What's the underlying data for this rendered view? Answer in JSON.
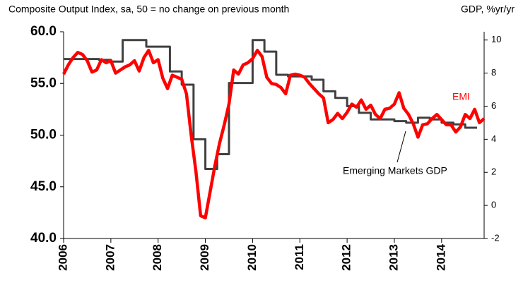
{
  "chart_data": {
    "type": "line",
    "title": "Composite Output Index, sa, 50 = no change on previous month",
    "y2_label": "GDP, %yr/yr",
    "annotations": [
      "EMI",
      "Emerging Markets GDP"
    ],
    "xlim": [
      2006,
      2014.9
    ],
    "xticks": [
      2006,
      2007,
      2008,
      2009,
      2010,
      2011,
      2012,
      2013,
      2014
    ],
    "ylim": [
      40,
      60
    ],
    "yticks": [
      {
        "value": 40,
        "label": "40.0"
      },
      {
        "value": 45,
        "label": "45.0"
      },
      {
        "value": 50,
        "label": "50.0"
      },
      {
        "value": 55,
        "label": "55.0"
      },
      {
        "value": 60,
        "label": "60.0"
      }
    ],
    "y2lim": [
      -2,
      10.5
    ],
    "y2ticks": [
      -2,
      0,
      2,
      4,
      6,
      8,
      10
    ],
    "series": [
      {
        "name": "EMI",
        "color": "#ff0000",
        "axis": "y",
        "step": false,
        "x": [
          2006.0,
          2006.1,
          2006.2,
          2006.3,
          2006.4,
          2006.5,
          2006.6,
          2006.7,
          2006.8,
          2006.9,
          2007.0,
          2007.1,
          2007.2,
          2007.3,
          2007.4,
          2007.5,
          2007.6,
          2007.7,
          2007.8,
          2007.9,
          2008.0,
          2008.1,
          2008.2,
          2008.3,
          2008.4,
          2008.5,
          2008.6,
          2008.7,
          2008.8,
          2008.9,
          2009.0,
          2009.1,
          2009.2,
          2009.3,
          2009.4,
          2009.5,
          2009.6,
          2009.7,
          2009.8,
          2009.9,
          2010.0,
          2010.1,
          2010.2,
          2010.3,
          2010.4,
          2010.5,
          2010.6,
          2010.7,
          2010.8,
          2010.9,
          2011.0,
          2011.1,
          2011.2,
          2011.3,
          2011.4,
          2011.5,
          2011.6,
          2011.7,
          2011.8,
          2011.9,
          2012.0,
          2012.1,
          2012.2,
          2012.3,
          2012.4,
          2012.5,
          2012.6,
          2012.7,
          2012.8,
          2012.9,
          2013.0,
          2013.1,
          2013.2,
          2013.3,
          2013.4,
          2013.5,
          2013.6,
          2013.7,
          2013.8,
          2013.9,
          2014.0,
          2014.1,
          2014.2,
          2014.3,
          2014.4,
          2014.5,
          2014.6,
          2014.7,
          2014.8,
          2014.9
        ],
        "values": [
          55.9,
          56.8,
          57.5,
          58,
          57.8,
          57.2,
          56.1,
          56.3,
          57.3,
          57.0,
          57.2,
          56.0,
          56.3,
          56.6,
          56.8,
          57.2,
          56.2,
          57.5,
          58.2,
          57.0,
          57.3,
          55.5,
          54.5,
          55.8,
          55.6,
          55.4,
          54.0,
          50.0,
          46.5,
          42.2,
          42.0,
          44.5,
          47.0,
          49.2,
          51.0,
          53.0,
          56.3,
          55.9,
          56.8,
          57.0,
          57.4,
          58.2,
          57.6,
          55.6,
          55.0,
          54.9,
          54.6,
          54.0,
          55.8,
          55.9,
          55.8,
          55.6,
          55.0,
          54.5,
          54.0,
          53.6,
          51.2,
          51.5,
          52.1,
          51.6,
          52.2,
          53.0,
          52.7,
          53.4,
          52.5,
          52.9,
          52.0,
          51.6,
          52.5,
          52.6,
          53.0,
          54.1,
          52.6,
          52.0,
          51.1,
          49.8,
          51.0,
          51.1,
          51.6,
          52.0,
          51.5,
          51.0,
          51.0,
          50.3,
          50.8,
          52.0,
          51.6,
          52.5,
          51.2,
          51.6
        ]
      },
      {
        "name": "Emerging Markets GDP",
        "color": "#404040",
        "axis": "y2",
        "step": true,
        "x": [
          2006.0,
          2006.25,
          2006.5,
          2006.75,
          2007.0,
          2007.25,
          2007.5,
          2007.75,
          2008.0,
          2008.25,
          2008.5,
          2008.75,
          2009.0,
          2009.25,
          2009.5,
          2009.75,
          2010.0,
          2010.25,
          2010.5,
          2010.75,
          2011.0,
          2011.25,
          2011.5,
          2011.75,
          2012.0,
          2012.25,
          2012.5,
          2012.75,
          2013.0,
          2013.25,
          2013.5,
          2013.75,
          2014.0,
          2014.25,
          2014.5,
          2014.75
        ],
        "values": [
          8.85,
          8.85,
          8.85,
          8.8,
          8.7,
          10.0,
          10.0,
          9.6,
          9.6,
          8.1,
          7.3,
          4.0,
          2.2,
          3.1,
          7.4,
          7.4,
          10.0,
          9.3,
          7.9,
          7.8,
          7.8,
          7.6,
          6.9,
          6.5,
          6.0,
          5.6,
          5.2,
          5.2,
          5.1,
          5.0,
          5.3,
          5.2,
          5.0,
          4.9,
          4.7,
          4.7
        ]
      }
    ]
  }
}
